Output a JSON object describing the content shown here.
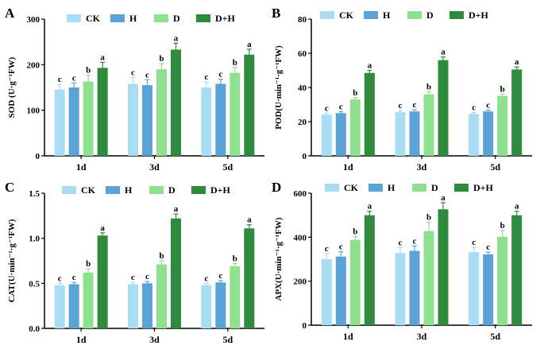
{
  "chart_data": [
    {
      "panel": "A",
      "type": "bar",
      "categories": [
        "1d",
        "3d",
        "5d"
      ],
      "ylabel": "SOD (U·g⁻¹FW)",
      "ylim": [
        0,
        300
      ],
      "yticks": [
        0,
        100,
        200,
        300
      ],
      "series": [
        {
          "name": "CK",
          "values": [
            145,
            158,
            150
          ],
          "errors": [
            12,
            14,
            12
          ],
          "sig": [
            "c",
            "c",
            "c"
          ]
        },
        {
          "name": "H",
          "values": [
            150,
            155,
            158
          ],
          "errors": [
            10,
            12,
            10
          ],
          "sig": [
            "c",
            "c",
            "c"
          ]
        },
        {
          "name": "D",
          "values": [
            163,
            190,
            182
          ],
          "errors": [
            14,
            12,
            12
          ],
          "sig": [
            "b",
            "b",
            "b"
          ]
        },
        {
          "name": "D+H",
          "values": [
            193,
            233,
            222
          ],
          "errors": [
            12,
            14,
            12
          ],
          "sig": [
            "a",
            "a",
            "a"
          ]
        }
      ]
    },
    {
      "panel": "B",
      "type": "bar",
      "categories": [
        "1d",
        "3d",
        "5d"
      ],
      "ylabel": "POD(U·min⁻¹·g⁻¹FW)",
      "ylim": [
        0,
        80
      ],
      "yticks": [
        0,
        20,
        40,
        60,
        80
      ],
      "series": [
        {
          "name": "CK",
          "values": [
            24,
            25.5,
            24.5
          ],
          "errors": [
            0.8,
            1.0,
            0.8
          ],
          "sig": [
            "c",
            "c",
            "c"
          ]
        },
        {
          "name": "H",
          "values": [
            25,
            26,
            26
          ],
          "errors": [
            0.8,
            1.0,
            0.8
          ],
          "sig": [
            "c",
            "c",
            "c"
          ]
        },
        {
          "name": "D",
          "values": [
            33,
            36,
            35
          ],
          "errors": [
            1.0,
            1.5,
            1.0
          ],
          "sig": [
            "b",
            "b",
            "b"
          ]
        },
        {
          "name": "D+H",
          "values": [
            48.5,
            56,
            50.5
          ],
          "errors": [
            1.5,
            1.8,
            1.5
          ],
          "sig": [
            "a",
            "a",
            "a"
          ]
        }
      ]
    },
    {
      "panel": "C",
      "type": "bar",
      "categories": [
        "1d",
        "3d",
        "5d"
      ],
      "ylabel": "CAT(U·min⁻¹·g⁻¹FW)",
      "ylim": [
        0,
        1.5
      ],
      "yticks": [
        0,
        0.5,
        1.0,
        1.5
      ],
      "yticklabels": [
        "0.0",
        "0.5",
        "1.0",
        "1.5"
      ],
      "series": [
        {
          "name": "CK",
          "values": [
            0.48,
            0.49,
            0.48
          ],
          "errors": [
            0.02,
            0.02,
            0.02
          ],
          "sig": [
            "c",
            "c",
            "c"
          ]
        },
        {
          "name": "H",
          "values": [
            0.49,
            0.5,
            0.51
          ],
          "errors": [
            0.02,
            0.02,
            0.02
          ],
          "sig": [
            "c",
            "c",
            "c"
          ]
        },
        {
          "name": "D",
          "values": [
            0.62,
            0.71,
            0.69
          ],
          "errors": [
            0.04,
            0.04,
            0.03
          ],
          "sig": [
            "b",
            "b",
            "b"
          ]
        },
        {
          "name": "D+H",
          "values": [
            1.03,
            1.22,
            1.11
          ],
          "errors": [
            0.03,
            0.05,
            0.04
          ],
          "sig": [
            "a",
            "a",
            "a"
          ]
        }
      ]
    },
    {
      "panel": "D",
      "type": "bar",
      "categories": [
        "1d",
        "3d",
        "5d"
      ],
      "ylabel": "APX(U·min⁻¹·g⁻¹FW)",
      "ylim": [
        0,
        600
      ],
      "yticks": [
        0,
        200,
        400,
        600
      ],
      "series": [
        {
          "name": "CK",
          "values": [
            300,
            328,
            332
          ],
          "errors": [
            25,
            25,
            22
          ],
          "sig": [
            "c",
            "c",
            "c"
          ]
        },
        {
          "name": "H",
          "values": [
            312,
            338,
            322
          ],
          "errors": [
            22,
            22,
            10
          ],
          "sig": [
            "c",
            "c",
            "c"
          ]
        },
        {
          "name": "D",
          "values": [
            388,
            428,
            402
          ],
          "errors": [
            15,
            40,
            28
          ],
          "sig": [
            "b",
            "b",
            "b"
          ]
        },
        {
          "name": "D+H",
          "values": [
            500,
            527,
            500
          ],
          "errors": [
            18,
            30,
            18
          ],
          "sig": [
            "a",
            "a",
            "a"
          ]
        }
      ]
    }
  ],
  "colors": {
    "CK": "#a8ddf3",
    "H": "#5ba3d6",
    "D": "#8fe08f",
    "D+H": "#2e8b3e",
    "axis": "#000000"
  }
}
